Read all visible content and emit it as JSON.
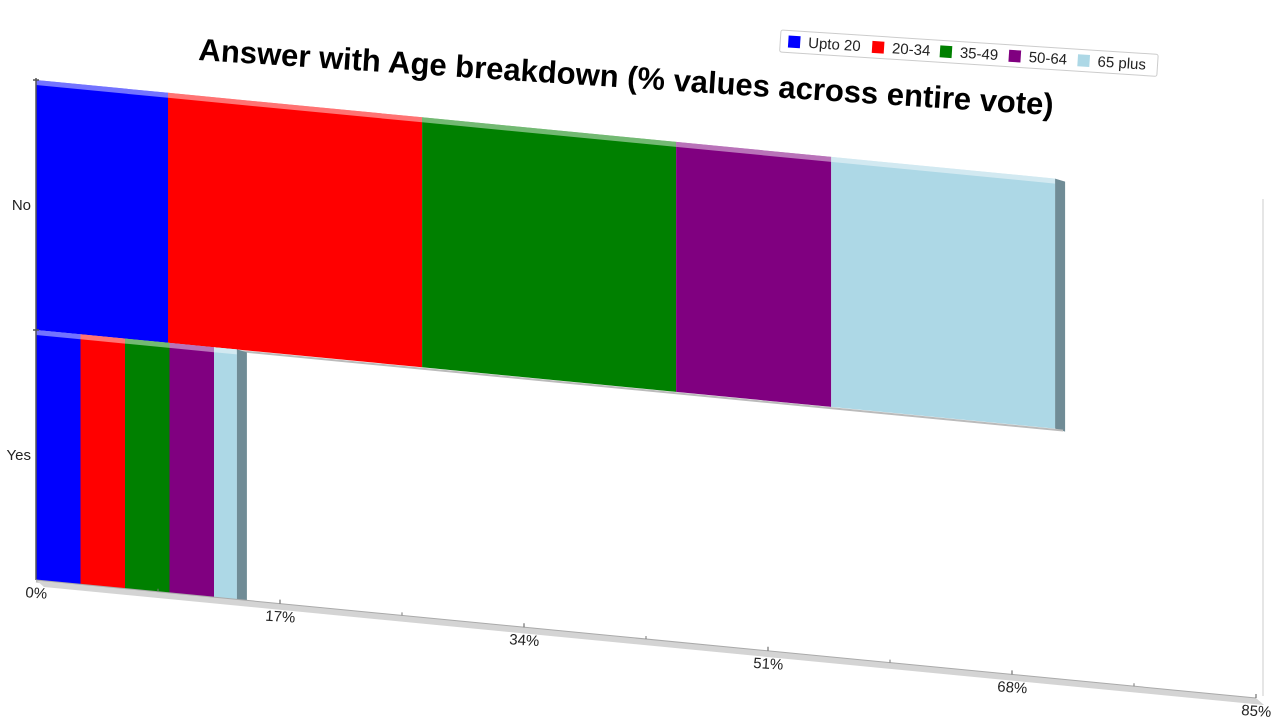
{
  "chart_data": {
    "type": "bar",
    "orientation": "horizontal",
    "stacked": true,
    "title": "Answer with Age breakdown (% values across entire vote)",
    "categories": [
      "No",
      "Yes"
    ],
    "series": [
      {
        "name": "Upto 20",
        "color": "#0000ff",
        "values": [
          9.2,
          3.1
        ]
      },
      {
        "name": "20-34",
        "color": "#ff0000",
        "values": [
          17.7,
          3.1
        ]
      },
      {
        "name": "35-49",
        "color": "#008000",
        "values": [
          17.7,
          3.1
        ]
      },
      {
        "name": "50-64",
        "color": "#800080",
        "values": [
          10.8,
          3.1
        ]
      },
      {
        "name": "65 plus",
        "color": "#add8e6",
        "values": [
          15.6,
          1.6
        ]
      }
    ],
    "xlim": [
      0,
      85
    ],
    "x_ticks": [
      "0%",
      "17%",
      "34%",
      "51%",
      "68%",
      "85%"
    ],
    "legend_position": "top-right",
    "grid": false
  }
}
